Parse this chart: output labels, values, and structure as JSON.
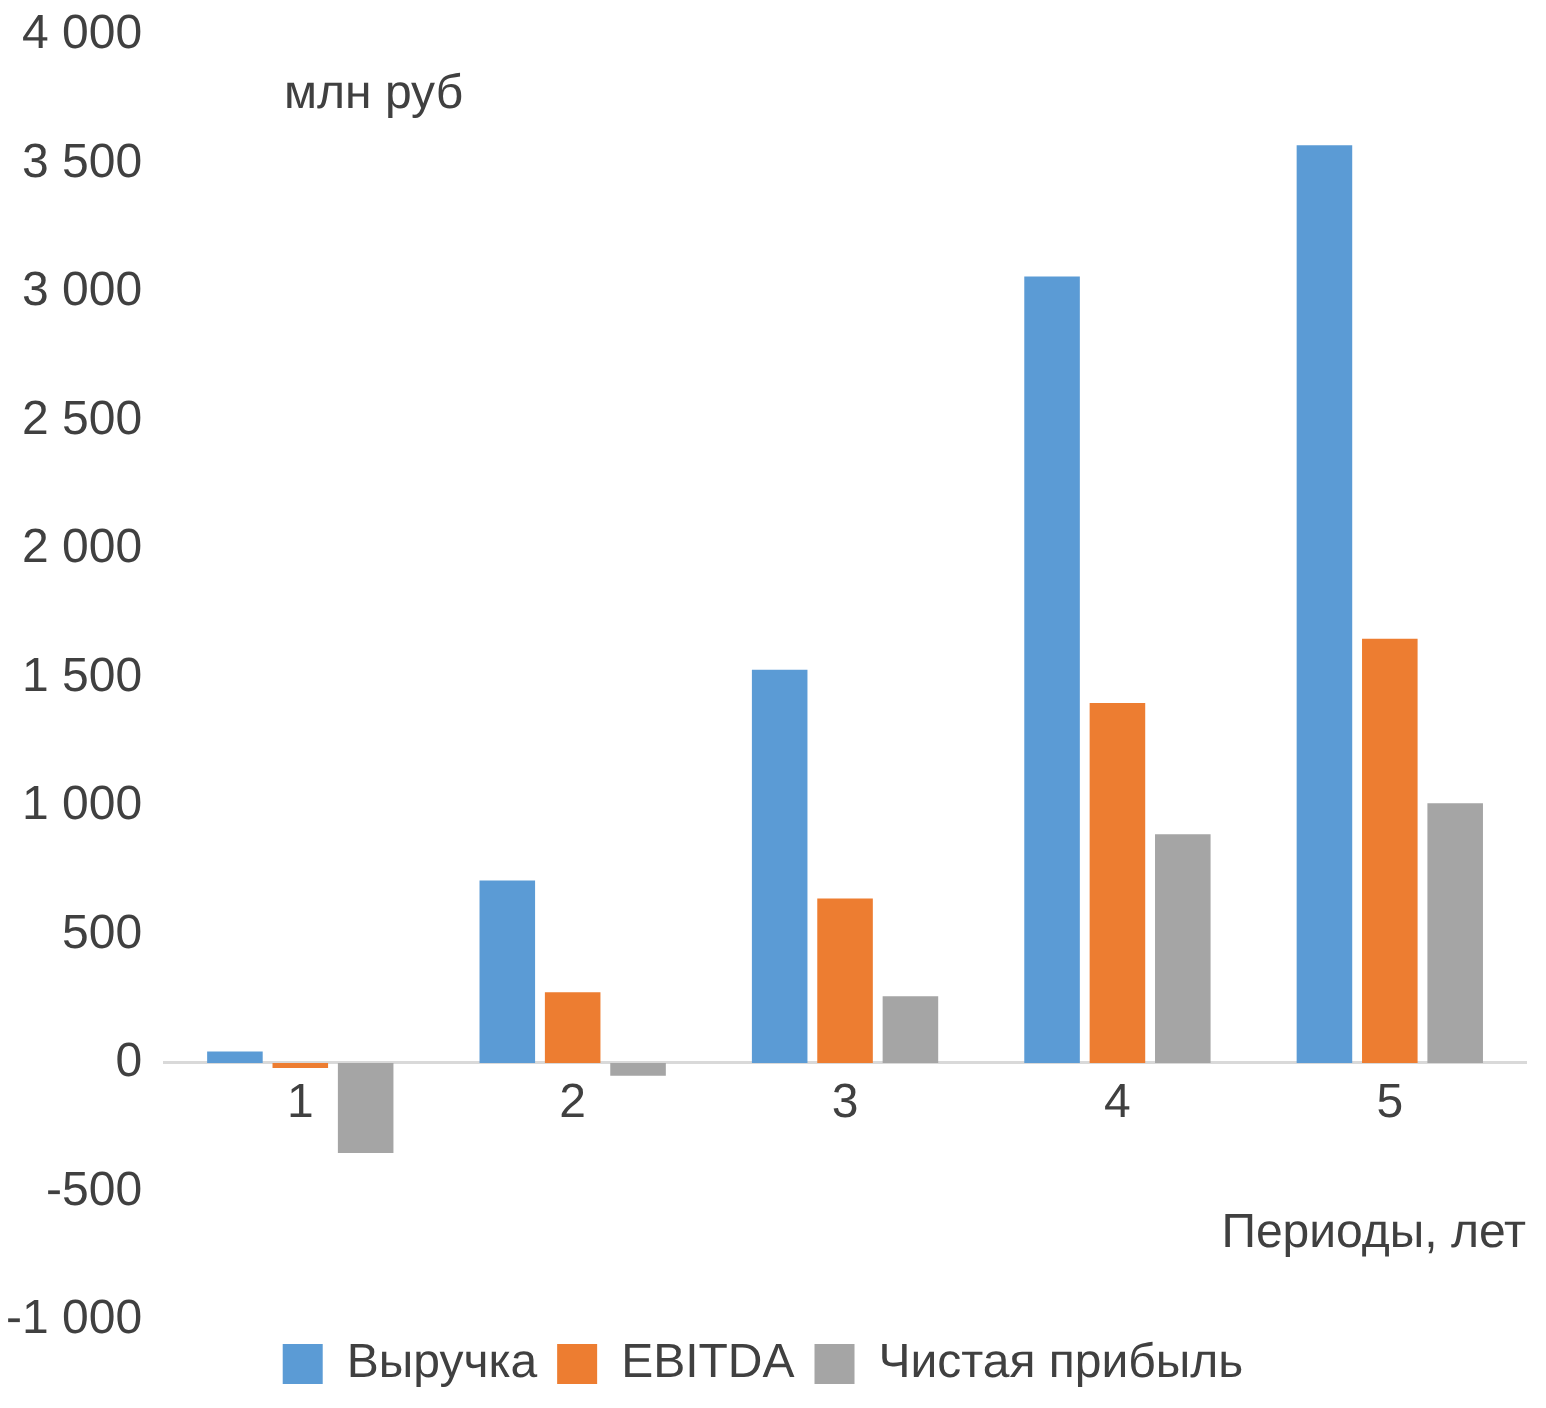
{
  "chart_data": {
    "type": "bar",
    "ylabel": "млн руб",
    "xlabel": "Периоды, лет",
    "categories": [
      "1",
      "2",
      "3",
      "4",
      "5"
    ],
    "series": [
      {
        "name": "Выручка",
        "color": "#5b9bd5",
        "values": [
          45,
          710,
          1530,
          3060,
          3570
        ]
      },
      {
        "name": "EBITDA",
        "color": "#ed7d31",
        "values": [
          -20,
          275,
          640,
          1400,
          1650
        ]
      },
      {
        "name": "Чистая прибыль",
        "color": "#a5a5a5",
        "values": [
          -350,
          -50,
          260,
          890,
          1010
        ]
      }
    ],
    "ylim": [
      -1000,
      4000
    ],
    "yticks": [
      {
        "value": -1000,
        "label": "-1 000"
      },
      -500,
      0,
      500,
      {
        "value": 1000,
        "label": "1 000"
      },
      {
        "value": 1500,
        "label": "1 500"
      },
      {
        "value": 2000,
        "label": "2 000"
      },
      {
        "value": 2500,
        "label": "2 500"
      },
      {
        "value": 3000,
        "label": "3 000"
      },
      {
        "value": 3500,
        "label": "3 500"
      },
      {
        "value": 4000,
        "label": "4 000"
      }
    ],
    "grid": false,
    "legend": "bottom"
  }
}
